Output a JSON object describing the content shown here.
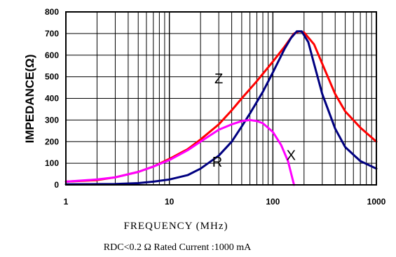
{
  "chart_data": {
    "type": "line",
    "xscale": "log",
    "xlim": [
      1,
      1000
    ],
    "ylim": [
      0,
      800
    ],
    "ylabel": "IMPEDANCE(Ω)",
    "xlabel": "FREQUENCY (MHz)",
    "footnote": "RDC<0.2 Ω Rated Current :1000 mA",
    "grid": true,
    "x_ticks": [
      {
        "value": 1,
        "label": "1"
      },
      {
        "value": 10,
        "label": "10"
      },
      {
        "value": 100,
        "label": "100"
      },
      {
        "value": 1000,
        "label": "1000"
      }
    ],
    "y_ticks": [
      {
        "value": 0,
        "label": "0"
      },
      {
        "value": 100,
        "label": "100"
      },
      {
        "value": 200,
        "label": "200"
      },
      {
        "value": 300,
        "label": "300"
      },
      {
        "value": 400,
        "label": "400"
      },
      {
        "value": 500,
        "label": "500"
      },
      {
        "value": 600,
        "label": "600"
      },
      {
        "value": 700,
        "label": "700"
      },
      {
        "value": 800,
        "label": "800"
      }
    ],
    "series": [
      {
        "name": "Z",
        "color": "#ff0000",
        "label_at": {
          "x": 30,
          "y": 470
        },
        "points": [
          [
            1,
            15
          ],
          [
            2,
            22
          ],
          [
            3,
            35
          ],
          [
            5,
            60
          ],
          [
            7,
            85
          ],
          [
            10,
            120
          ],
          [
            15,
            165
          ],
          [
            20,
            210
          ],
          [
            30,
            280
          ],
          [
            40,
            345
          ],
          [
            50,
            400
          ],
          [
            70,
            480
          ],
          [
            100,
            570
          ],
          [
            130,
            640
          ],
          [
            160,
            700
          ],
          [
            180,
            710
          ],
          [
            200,
            705
          ],
          [
            250,
            650
          ],
          [
            300,
            560
          ],
          [
            400,
            420
          ],
          [
            500,
            340
          ],
          [
            700,
            265
          ],
          [
            1000,
            200
          ]
        ]
      },
      {
        "name": "X",
        "color": "#000080",
        "label_at": {
          "x": 150,
          "y": 115
        },
        "points": [
          [
            1,
            3
          ],
          [
            3,
            4
          ],
          [
            5,
            8
          ],
          [
            7,
            15
          ],
          [
            10,
            25
          ],
          [
            15,
            45
          ],
          [
            20,
            75
          ],
          [
            30,
            135
          ],
          [
            40,
            200
          ],
          [
            50,
            270
          ],
          [
            60,
            330
          ],
          [
            80,
            430
          ],
          [
            100,
            520
          ],
          [
            130,
            630
          ],
          [
            150,
            680
          ],
          [
            170,
            710
          ],
          [
            190,
            710
          ],
          [
            220,
            660
          ],
          [
            250,
            560
          ],
          [
            300,
            420
          ],
          [
            400,
            260
          ],
          [
            500,
            175
          ],
          [
            700,
            110
          ],
          [
            1000,
            75
          ]
        ]
      },
      {
        "name": "R",
        "color": "#ff00ff",
        "label_at": {
          "x": 29,
          "y": 85
        },
        "points": [
          [
            1,
            15
          ],
          [
            2,
            25
          ],
          [
            3,
            35
          ],
          [
            5,
            60
          ],
          [
            7,
            85
          ],
          [
            10,
            115
          ],
          [
            15,
            160
          ],
          [
            20,
            200
          ],
          [
            30,
            255
          ],
          [
            40,
            280
          ],
          [
            50,
            295
          ],
          [
            60,
            300
          ],
          [
            70,
            295
          ],
          [
            80,
            285
          ],
          [
            100,
            245
          ],
          [
            120,
            185
          ],
          [
            140,
            110
          ],
          [
            160,
            0
          ]
        ]
      }
    ]
  }
}
